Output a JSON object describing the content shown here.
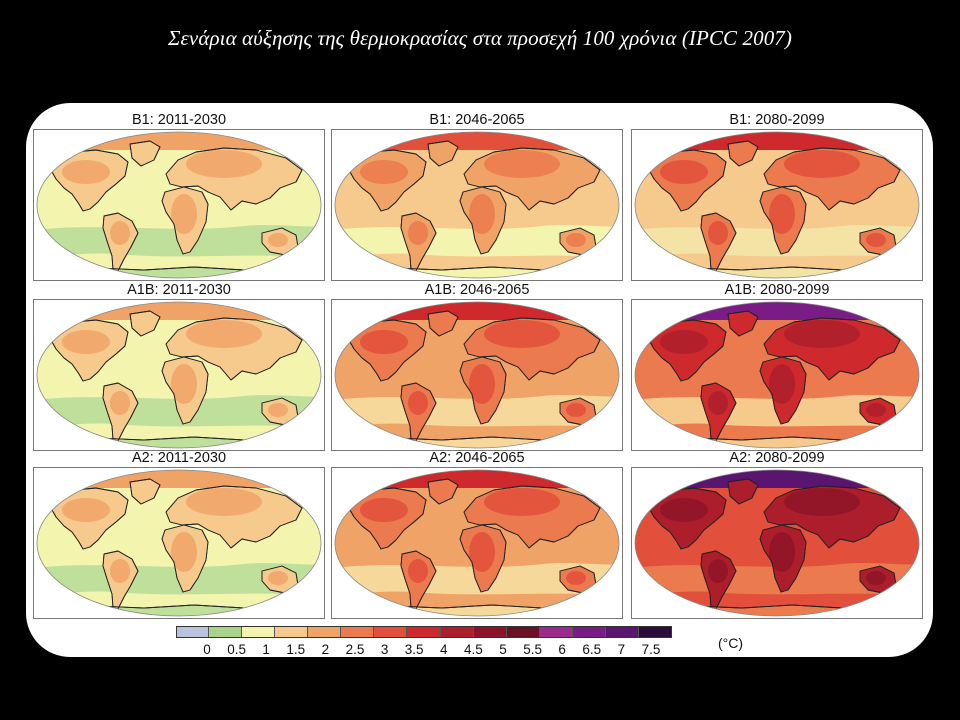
{
  "slide": {
    "title": "Σενάρια αύξησης της θερμοκρασίας στα προσεχή 100 χρόνια (IPCC 2007)"
  },
  "colorbar": {
    "unit": "(°C)",
    "ticks": [
      "0",
      "0.5",
      "1",
      "1.5",
      "2",
      "2.5",
      "3",
      "3.5",
      "4",
      "4.5",
      "5",
      "5.5",
      "6",
      "6.5",
      "7",
      "7.5"
    ],
    "colors": [
      "#b9c3dd",
      "#a9d28a",
      "#f3f5ae",
      "#f6c98d",
      "#f0a367",
      "#eb7a4e",
      "#e2503b",
      "#ce2a2d",
      "#ad1e2c",
      "#8d1428",
      "#6c1024",
      "#9b2b8c",
      "#7a1c86",
      "#5a1570",
      "#2a0b3c"
    ]
  },
  "panels": [
    {
      "label": "B1: 2011-2030",
      "scenario": "B1",
      "period": "2011-2030",
      "palette": {
        "ocean": "#f3f5ae",
        "ocean_band": "#bfe09a",
        "land": "#f6c98d",
        "land_hot": "#f0a367",
        "arctic": "#f0a367"
      }
    },
    {
      "label": "B1: 2046-2065",
      "scenario": "B1",
      "period": "2046-2065",
      "palette": {
        "ocean": "#f6c98d",
        "ocean_band": "#f3f5ae",
        "land": "#f0a367",
        "land_hot": "#eb7a4e",
        "arctic": "#e2503b"
      }
    },
    {
      "label": "B1: 2080-2099",
      "scenario": "B1",
      "period": "2080-2099",
      "palette": {
        "ocean": "#f6c98d",
        "ocean_band": "#f3e3a5",
        "land": "#eb7a4e",
        "land_hot": "#e2503b",
        "arctic": "#ce2a2d"
      }
    },
    {
      "label": "A1B: 2011-2030",
      "scenario": "A1B",
      "period": "2011-2030",
      "palette": {
        "ocean": "#f3f5ae",
        "ocean_band": "#bfe09a",
        "land": "#f6c98d",
        "land_hot": "#f0a367",
        "arctic": "#f0a367"
      }
    },
    {
      "label": "A1B: 2046-2065",
      "scenario": "A1B",
      "period": "2046-2065",
      "palette": {
        "ocean": "#f0a367",
        "ocean_band": "#f6d99a",
        "land": "#eb7a4e",
        "land_hot": "#e2503b",
        "arctic": "#ce2a2d"
      }
    },
    {
      "label": "A1B: 2080-2099",
      "scenario": "A1B",
      "period": "2080-2099",
      "palette": {
        "ocean": "#eb7a4e",
        "ocean_band": "#f6c98d",
        "land": "#ce2a2d",
        "land_hot": "#ad1e2c",
        "arctic": "#7a1c86"
      }
    },
    {
      "label": "A2: 2011-2030",
      "scenario": "A2",
      "period": "2011-2030",
      "palette": {
        "ocean": "#f3f5ae",
        "ocean_band": "#bfe09a",
        "land": "#f6c98d",
        "land_hot": "#f0a367",
        "arctic": "#f0a367"
      }
    },
    {
      "label": "A2: 2046-2065",
      "scenario": "A2",
      "period": "2046-2065",
      "palette": {
        "ocean": "#f0a367",
        "ocean_band": "#f6d99a",
        "land": "#eb7a4e",
        "land_hot": "#e2503b",
        "arctic": "#ce2a2d"
      }
    },
    {
      "label": "A2: 2080-2099",
      "scenario": "A2",
      "period": "2080-2099",
      "palette": {
        "ocean": "#e2503b",
        "ocean_band": "#eb7a4e",
        "land": "#ad1e2c",
        "land_hot": "#8d1428",
        "arctic": "#5a1570"
      }
    }
  ]
}
